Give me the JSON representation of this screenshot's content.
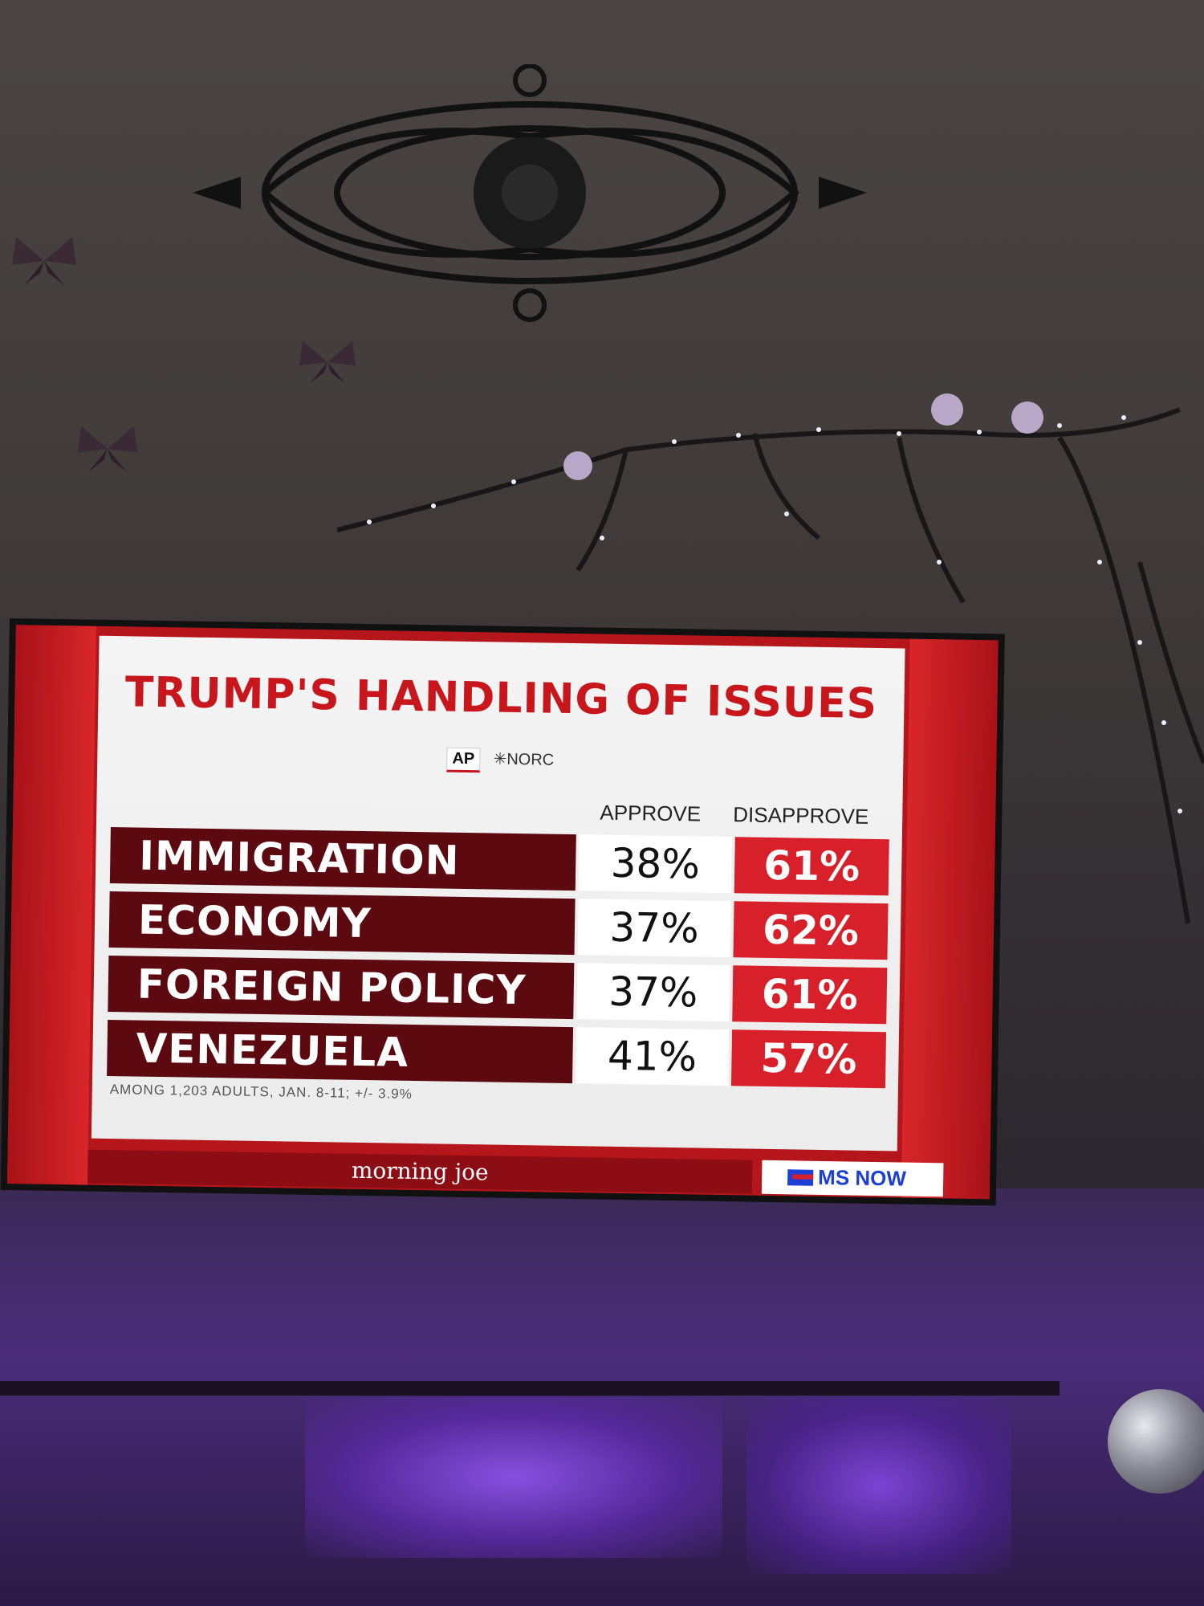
{
  "scene": {
    "wall_items": [
      "wrought-iron-ornament",
      "butterfly",
      "butterfly",
      "butterfly",
      "lighted-branches"
    ],
    "furniture": [
      "tv-stand",
      "disco-ball"
    ]
  },
  "tv": {
    "title": "TRUMP'S HANDLING OF ISSUES",
    "logos": {
      "ap": "AP",
      "norc": "✳NORC"
    },
    "columns": {
      "approve": "APPROVE",
      "disapprove": "DISAPPROVE"
    },
    "rows": [
      {
        "issue": "IMMIGRATION",
        "approve": "38%",
        "disapprove": "61%"
      },
      {
        "issue": "ECONOMY",
        "approve": "37%",
        "disapprove": "62%"
      },
      {
        "issue": "FOREIGN POLICY",
        "approve": "37%",
        "disapprove": "61%"
      },
      {
        "issue": "VENEZUELA",
        "approve": "41%",
        "disapprove": "57%"
      }
    ],
    "footnote": "AMONG 1,203 ADULTS, JAN. 8-11; +/- 3.9%",
    "show": "morning joe",
    "network": "MS NOW",
    "colors": {
      "title": "#c8161d",
      "label_bg": "#5c0a10",
      "disapprove_bg": "#d8202a",
      "network": "#1c3fd6"
    }
  }
}
